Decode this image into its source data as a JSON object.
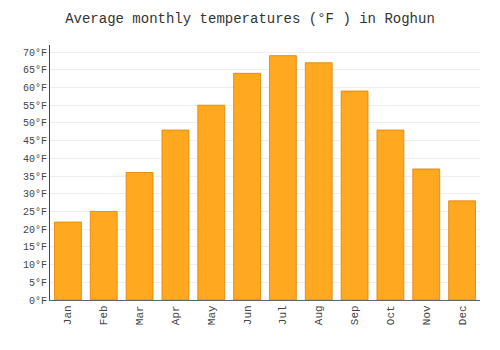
{
  "chart_data": {
    "type": "bar",
    "title": "Average monthly temperatures (°F ) in Roghun",
    "categories": [
      "Jan",
      "Feb",
      "Mar",
      "Apr",
      "May",
      "Jun",
      "Jul",
      "Aug",
      "Sep",
      "Oct",
      "Nov",
      "Dec"
    ],
    "values": [
      22,
      25,
      36,
      48,
      55,
      64,
      69,
      67,
      59,
      48,
      37,
      28
    ],
    "color": "#FFA820",
    "ylim": [
      0,
      72
    ],
    "yticks": [
      {
        "value": 0,
        "label": "0°F"
      },
      {
        "value": 5,
        "label": "5°F"
      },
      {
        "value": 10,
        "label": "10°F"
      },
      {
        "value": 15,
        "label": "15°F"
      },
      {
        "value": 20,
        "label": "20°F"
      },
      {
        "value": 25,
        "label": "25°F"
      },
      {
        "value": 30,
        "label": "30°F"
      },
      {
        "value": 35,
        "label": "35°F"
      },
      {
        "value": 40,
        "label": "40°F"
      },
      {
        "value": 45,
        "label": "45°F"
      },
      {
        "value": 50,
        "label": "50°F"
      },
      {
        "value": 55,
        "label": "55°F"
      },
      {
        "value": 60,
        "label": "60°F"
      },
      {
        "value": 65,
        "label": "65°F"
      },
      {
        "value": 70,
        "label": "70°F"
      }
    ],
    "grid": true
  }
}
